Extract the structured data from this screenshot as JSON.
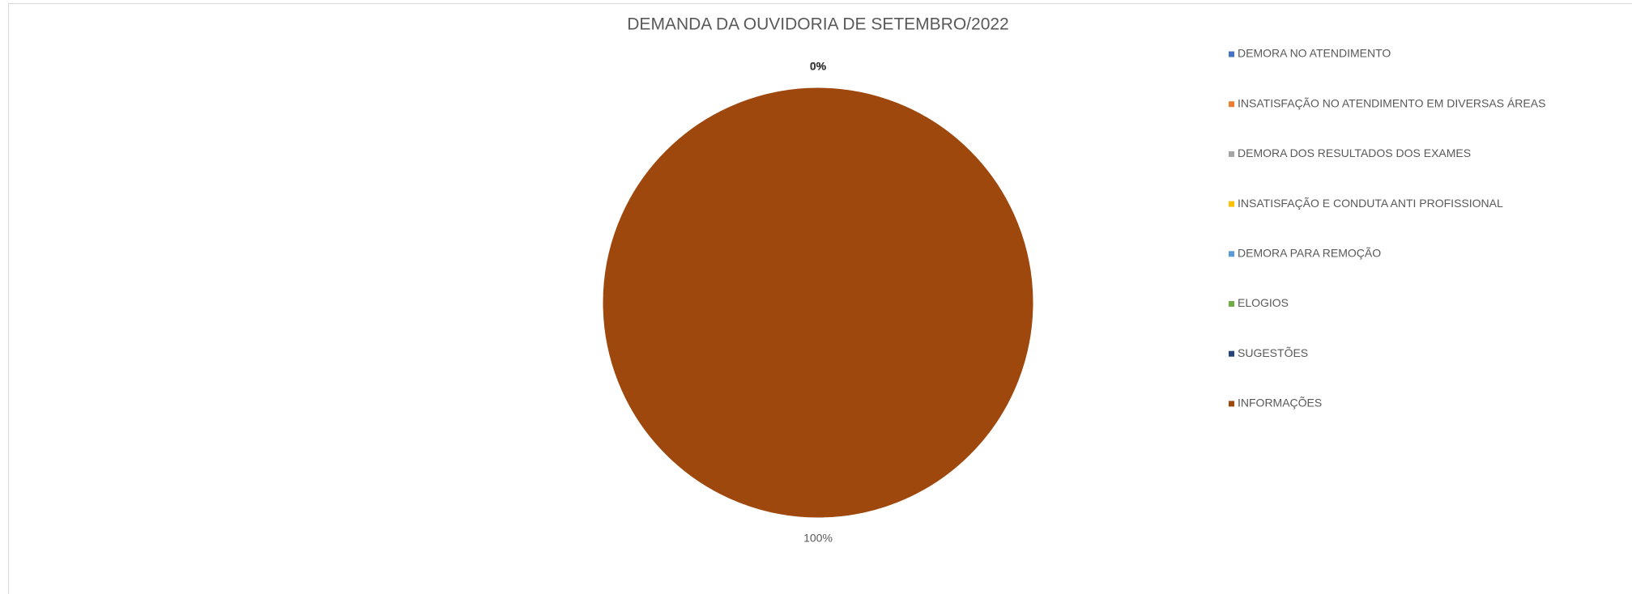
{
  "chart_data": {
    "type": "pie",
    "title": "DEMANDA DA OUVIDORIA DE SETEMBRO/2022",
    "categories": [
      "DEMORA NO ATENDIMENTO",
      "INSATISFAÇÃO NO ATENDIMENTO EM DIVERSAS ÁREAS",
      "DEMORA DOS RESULTADOS DOS EXAMES",
      "INSATISFAÇÃO E CONDUTA ANTI PROFISSIONAL",
      "DEMORA PARA REMOÇÃO",
      "ELOGIOS",
      "SUGESTÕES",
      "INFORMAÇÕES"
    ],
    "values": [
      0,
      0,
      0,
      0,
      0,
      0,
      0,
      100
    ],
    "value_labels": [
      "0%",
      "0%",
      "0%",
      "0%",
      "0%",
      "0%",
      "0%",
      "100%"
    ],
    "colors": [
      "#4472c4",
      "#ed7d31",
      "#a5a5a5",
      "#ffc000",
      "#5b9bd5",
      "#70ad47",
      "#264478",
      "#9e480e"
    ],
    "legend": "right"
  }
}
